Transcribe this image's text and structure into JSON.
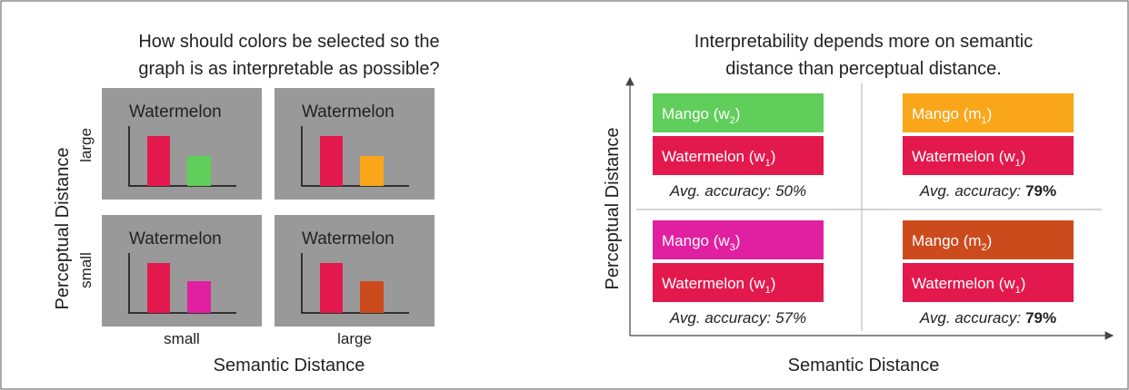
{
  "left": {
    "title": [
      "How should colors be selected so the",
      "graph is as interpretable as possible?"
    ],
    "y_axis_label": "Perceptual Distance",
    "x_axis_label": "Semantic Distance",
    "row_labels": [
      "large",
      "small"
    ],
    "column_labels": [
      "small",
      "large"
    ],
    "panels": [
      {
        "label": "Watermelon",
        "colors": [
          "#e3194e",
          "#5fce5a"
        ]
      },
      {
        "label": "Watermelon",
        "colors": [
          "#e3194e",
          "#f9a61a"
        ]
      },
      {
        "label": "Watermelon",
        "colors": [
          "#e3194e",
          "#e020a0"
        ]
      },
      {
        "label": "Watermelon",
        "colors": [
          "#e3194e",
          "#cc4b1c"
        ]
      }
    ]
  },
  "right": {
    "title": [
      "Interpretability depends more on semantic",
      "distance than perceptual distance."
    ],
    "y_axis_label": "Perceptual Distance",
    "x_axis_label": "Semantic Distance",
    "quadrants": [
      {
        "items": [
          {
            "text": "Mango (w",
            "sub": "2",
            "close": ")",
            "color": "#5fce5a"
          },
          {
            "text": "Watermelon (w",
            "sub": "1",
            "close": ")",
            "color": "#e3194e"
          }
        ],
        "accuracy": {
          "prefix": "Avg. accuracy:",
          "value": "50%",
          "bold": false
        }
      },
      {
        "items": [
          {
            "text": "Mango (m",
            "sub": "1",
            "close": ")",
            "color": "#f9a61a"
          },
          {
            "text": "Watermelon (w",
            "sub": "1",
            "close": ")",
            "color": "#e3194e"
          }
        ],
        "accuracy": {
          "prefix": "Avg. accuracy:",
          "value": "79%",
          "bold": true
        }
      },
      {
        "items": [
          {
            "text": "Mango (w",
            "sub": "3",
            "close": ")",
            "color": "#e020a0"
          },
          {
            "text": "Watermelon (w",
            "sub": "1",
            "close": ")",
            "color": "#e3194e"
          }
        ],
        "accuracy": {
          "prefix": "Avg. accuracy:",
          "value": "57%",
          "bold": false
        }
      },
      {
        "items": [
          {
            "text": "Mango (m",
            "sub": "2",
            "close": ")",
            "color": "#cc4b1c"
          },
          {
            "text": "Watermelon (w",
            "sub": "1",
            "close": ")",
            "color": "#e3194e"
          }
        ],
        "accuracy": {
          "prefix": "Avg. accuracy:",
          "value": "79%",
          "bold": true
        }
      }
    ]
  }
}
